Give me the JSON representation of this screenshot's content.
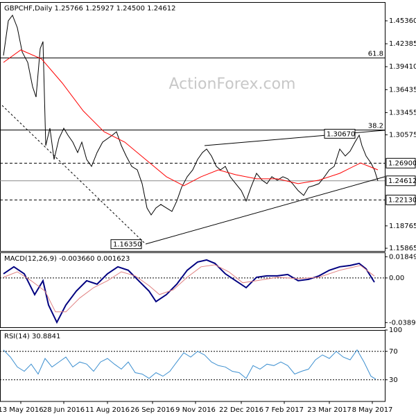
{
  "chart_data": [
    {
      "type": "line",
      "title": "GBPCHF,Daily  1.25766 1.25927 1.24500 1.24612",
      "watermark": "ActionForex.com",
      "xlim": [
        0,
        555
      ],
      "ylim": [
        1.1551,
        1.4779
      ],
      "yticks": [
        {
          "value": 1.4536,
          "label": "1.45360"
        },
        {
          "value": 1.42385,
          "label": "1.42385"
        },
        {
          "value": 1.3941,
          "label": "1.39410"
        },
        {
          "value": 1.36435,
          "label": "1.36435"
        },
        {
          "value": 1.33455,
          "label": "1.33455"
        },
        {
          "value": 1.30575,
          "label": "1.30575"
        },
        {
          "value": 1.18765,
          "label": "1.18765"
        },
        {
          "value": 1.15865,
          "label": "1.15865"
        }
      ],
      "xticks": [
        {
          "value": 30,
          "label": "13 May 2016"
        },
        {
          "value": 92,
          "label": "28 Jun 2016"
        },
        {
          "value": 155,
          "label": "11 Aug 2016"
        },
        {
          "value": 220,
          "label": "26 Sep 2016"
        },
        {
          "value": 282,
          "label": "9 Nov 2016"
        },
        {
          "value": 348,
          "label": "22 Dec 2016"
        },
        {
          "value": 410,
          "label": "7 Feb 2017"
        },
        {
          "value": 475,
          "label": "23 Mar 2017"
        },
        {
          "value": 537,
          "label": "8 May 2017"
        }
      ],
      "series": [
        {
          "color": "#000000",
          "x": [
            5,
            12,
            18,
            25,
            32,
            40,
            47,
            52,
            58,
            62,
            66,
            72,
            78,
            85,
            92,
            98,
            105,
            112,
            118,
            125,
            132,
            140,
            148,
            155,
            162,
            168,
            175,
            182,
            190,
            198,
            205,
            212,
            218,
            225,
            232,
            240,
            248,
            255,
            262,
            270,
            278,
            285,
            292,
            298,
            305,
            312,
            318,
            325,
            332,
            340,
            348,
            355,
            362,
            370,
            378,
            385,
            392,
            400,
            408,
            415,
            422,
            430,
            438,
            445,
            452,
            460,
            468,
            475,
            482,
            490,
            498,
            505,
            512,
            518,
            522,
            528,
            535,
            540,
            545
          ],
          "values": [
            1.4087,
            1.4536,
            1.4608,
            1.4446,
            1.4132,
            1.3997,
            1.3682,
            1.3547,
            1.4177,
            1.4267,
            1.2918,
            1.3143,
            1.2738,
            1.3008,
            1.3143,
            1.3053,
            1.2963,
            1.2828,
            1.2963,
            1.2738,
            1.2648,
            1.2828,
            1.2963,
            1.3008,
            1.3053,
            1.3098,
            1.2918,
            1.2783,
            1.2648,
            1.2603,
            1.2424,
            1.2109,
            1.2019,
            1.2109,
            1.2154,
            1.2109,
            1.2064,
            1.2199,
            1.2379,
            1.2514,
            1.2603,
            1.2738,
            1.2828,
            1.2873,
            1.2783,
            1.2648,
            1.2603,
            1.2648,
            1.2514,
            1.2424,
            1.2334,
            1.2199,
            1.2379,
            1.2558,
            1.2469,
            1.2424,
            1.2514,
            1.2469,
            1.2514,
            1.2487,
            1.2424,
            1.2334,
            1.2271,
            1.2379,
            1.2397,
            1.2424,
            1.2514,
            1.2603,
            1.2648,
            1.2873,
            1.2783,
            1.2846,
            1.2963,
            1.3053,
            1.2918,
            1.2783,
            1.2693,
            1.2603,
            1.24612
          ]
        },
        {
          "color": "#ff0000",
          "x": [
            5,
            30,
            60,
            90,
            120,
            150,
            180,
            210,
            240,
            265,
            290,
            315,
            340,
            370,
            400,
            430,
            460,
            490,
            520,
            545
          ],
          "values": [
            1.3997,
            1.4159,
            1.4042,
            1.3727,
            1.3368,
            1.3098,
            1.2963,
            1.2738,
            1.2514,
            1.2397,
            1.2514,
            1.2603,
            1.254,
            1.2487,
            1.2487,
            1.2424,
            1.2469,
            1.2558,
            1.2693,
            1.2603
          ]
        },
        {
          "color": "#000000",
          "style": "solid",
          "x": [
            295,
            555
          ],
          "values": [
            1.2918,
            1.3116
          ]
        },
        {
          "color": "#000000",
          "style": "solid",
          "x": [
            210,
            555
          ],
          "values": [
            1.1641,
            1.2514
          ]
        },
        {
          "color": "#000000",
          "style": "dashed",
          "x": [
            3,
            210
          ],
          "values": [
            1.3439,
            1.1641
          ]
        }
      ],
      "levels": [
        {
          "value": 1.4054,
          "label": "61.8",
          "style": "solid",
          "box": false
        },
        {
          "value": 1.312,
          "label": "38.2",
          "style": "solid",
          "box": false
        },
        {
          "value": 1.269,
          "label": "1.26900",
          "style": "dashed",
          "box": true
        },
        {
          "value": 1.24612,
          "label": "1.24612",
          "style": "thin",
          "box": true
        },
        {
          "value": 1.2213,
          "label": "1.22130",
          "style": "dashed",
          "box": true
        }
      ],
      "annotations": [
        {
          "x": 468,
          "value": 1.3067,
          "label": "1.30670"
        },
        {
          "x": 160,
          "value": 1.1635,
          "label": "1.16350"
        }
      ]
    },
    {
      "type": "line",
      "title": "MACD(12,26,9) -0.003660 0.001623",
      "xlim": [
        0,
        555
      ],
      "ylim": [
        -0.043,
        0.0223
      ],
      "yticks": [
        0.018495,
        {
          "value": 0,
          "label": "0.00"
        },
        -0.038941
      ],
      "zero_line": true,
      "series": [
        {
          "color": "#000080",
          "width": 2,
          "x": [
            5,
            20,
            35,
            50,
            62,
            70,
            82,
            95,
            110,
            125,
            140,
            155,
            170,
            185,
            200,
            215,
            225,
            240,
            255,
            270,
            285,
            298,
            310,
            325,
            340,
            355,
            370,
            385,
            400,
            415,
            430,
            445,
            460,
            475,
            490,
            505,
            518,
            528,
            540
          ],
          "values": [
            0.0036,
            0.0097,
            0.0036,
            -0.0145,
            -0.0024,
            -0.0236,
            -0.0387,
            -0.0236,
            -0.0115,
            -0.0024,
            -0.0054,
            0.0036,
            0.0097,
            0.0067,
            -0.0024,
            -0.0115,
            -0.0206,
            -0.0145,
            -0.0054,
            0.0067,
            0.0139,
            0.0157,
            0.0127,
            0.0036,
            -0.0024,
            -0.0085,
            0.0006,
            0.0018,
            0.0018,
            0.003,
            -0.0024,
            -0.0012,
            0.0018,
            0.0067,
            0.0097,
            0.0109,
            0.0127,
            0.0079,
            -0.0037
          ]
        },
        {
          "color": "#e08080",
          "width": 1,
          "x": [
            5,
            25,
            45,
            65,
            80,
            95,
            115,
            135,
            155,
            175,
            195,
            215,
            230,
            250,
            270,
            290,
            310,
            330,
            350,
            370,
            400,
            430,
            460,
            490,
            520,
            540
          ],
          "values": [
            0.0006,
            0.0054,
            -0.0024,
            -0.0115,
            -0.0296,
            -0.0296,
            -0.0175,
            -0.0085,
            -0.0024,
            0.0054,
            0.0018,
            -0.0067,
            -0.0145,
            -0.0103,
            0.0006,
            0.0097,
            0.0115,
            0.0054,
            -0.0042,
            -0.0024,
            0.0006,
            -0.0006,
            0.0006,
            0.0067,
            0.0109,
            0.0016
          ]
        }
      ]
    },
    {
      "type": "line",
      "title": "RSI(14) 30.8841",
      "xlim": [
        0,
        555
      ],
      "ylim": [
        0,
        100
      ],
      "yticks": [
        100,
        70,
        30
      ],
      "level_lines": [
        70,
        30
      ],
      "series": [
        {
          "color": "#3c8fd0",
          "width": 1,
          "x": [
            5,
            15,
            25,
            35,
            45,
            55,
            65,
            75,
            85,
            95,
            105,
            115,
            125,
            135,
            145,
            155,
            165,
            175,
            185,
            195,
            205,
            215,
            225,
            235,
            245,
            255,
            265,
            275,
            285,
            295,
            305,
            315,
            325,
            335,
            345,
            355,
            365,
            375,
            385,
            395,
            405,
            415,
            425,
            435,
            445,
            455,
            465,
            475,
            485,
            495,
            505,
            515,
            525,
            535,
            542
          ],
          "values": [
            72,
            62,
            48,
            42,
            52,
            38,
            60,
            48,
            55,
            62,
            48,
            55,
            52,
            42,
            55,
            60,
            52,
            45,
            55,
            40,
            38,
            32,
            40,
            35,
            42,
            55,
            68,
            62,
            70,
            65,
            55,
            50,
            48,
            42,
            40,
            32,
            50,
            45,
            52,
            50,
            55,
            50,
            38,
            42,
            45,
            58,
            65,
            60,
            70,
            62,
            58,
            72,
            55,
            35,
            30.8841
          ]
        }
      ]
    }
  ]
}
